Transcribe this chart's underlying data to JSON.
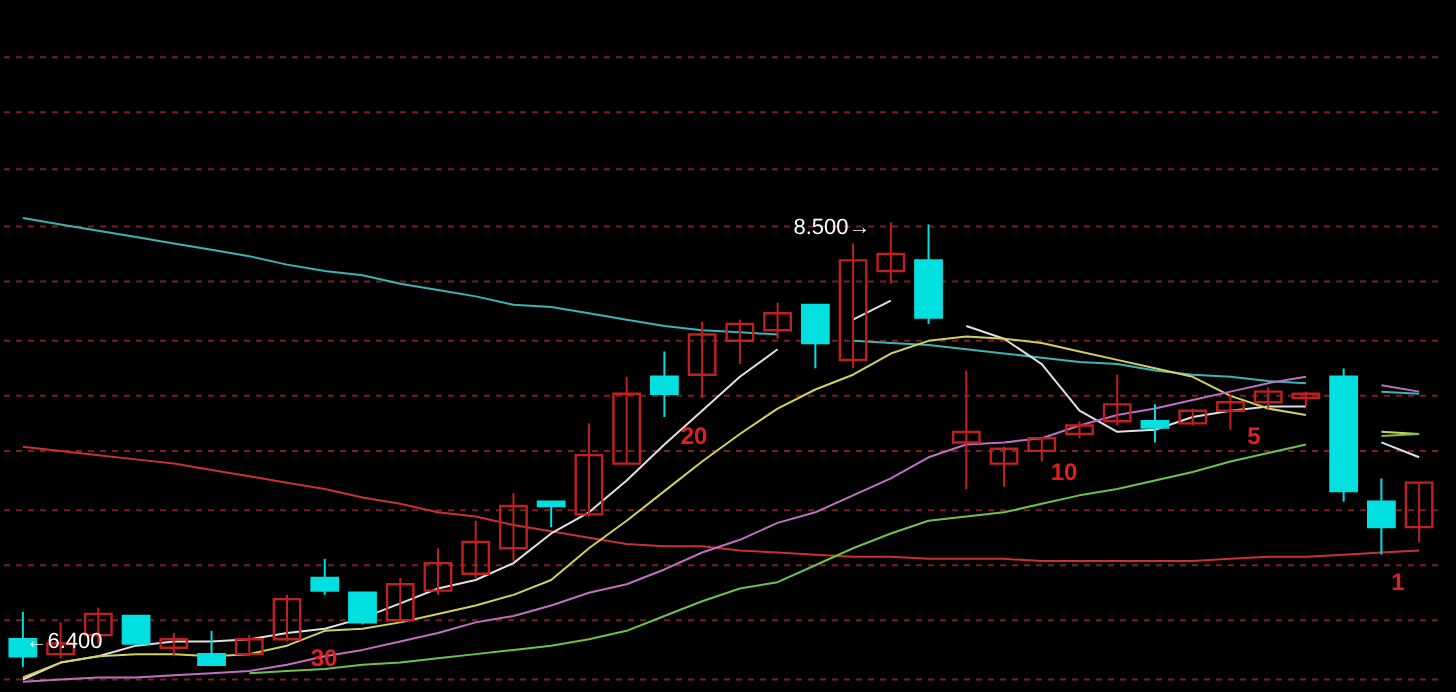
{
  "chart_data": {
    "type": "candlestick",
    "categories": [
      null,
      null,
      null,
      null,
      null,
      null,
      null,
      null,
      null,
      null,
      null,
      null,
      null,
      null,
      null,
      null,
      null,
      null,
      null,
      null,
      null,
      null,
      null,
      null,
      null,
      null,
      null,
      null,
      null,
      null,
      null,
      null,
      null,
      null,
      null,
      null,
      null,
      null
    ],
    "ohlc": [
      [
        6.53,
        6.66,
        6.4,
        6.45
      ],
      [
        6.46,
        6.61,
        6.44,
        6.51
      ],
      [
        6.55,
        6.68,
        6.51,
        6.65
      ],
      [
        6.64,
        6.64,
        6.51,
        6.51
      ],
      [
        6.49,
        6.56,
        6.45,
        6.53
      ],
      [
        6.46,
        6.57,
        6.41,
        6.41
      ],
      [
        6.46,
        6.55,
        6.45,
        6.53
      ],
      [
        6.53,
        6.74,
        6.52,
        6.72
      ],
      [
        6.82,
        6.91,
        6.74,
        6.76
      ],
      [
        6.75,
        6.75,
        6.6,
        6.61
      ],
      [
        6.62,
        6.82,
        6.61,
        6.79
      ],
      [
        6.76,
        6.96,
        6.74,
        6.89
      ],
      [
        6.84,
        7.09,
        6.82,
        6.99
      ],
      [
        6.96,
        7.22,
        6.9,
        7.16
      ],
      [
        7.18,
        7.18,
        7.06,
        7.16
      ],
      [
        7.12,
        7.55,
        7.11,
        7.4
      ],
      [
        7.36,
        7.77,
        7.36,
        7.69
      ],
      [
        7.77,
        7.89,
        7.58,
        7.69
      ],
      [
        7.78,
        8.03,
        7.67,
        7.97
      ],
      [
        7.94,
        8.04,
        7.83,
        8.02
      ],
      [
        7.99,
        8.12,
        7.95,
        8.07
      ],
      [
        8.11,
        8.11,
        7.81,
        7.93
      ],
      [
        7.85,
        8.4,
        7.81,
        8.32
      ],
      [
        8.27,
        8.5,
        8.21,
        8.35
      ],
      [
        8.32,
        8.49,
        8.02,
        8.05
      ],
      [
        7.46,
        7.8,
        7.24,
        7.51
      ],
      [
        7.36,
        7.44,
        7.25,
        7.43
      ],
      [
        7.42,
        7.48,
        7.37,
        7.48
      ],
      [
        7.5,
        7.56,
        7.48,
        7.54
      ],
      [
        7.56,
        7.78,
        7.54,
        7.64
      ],
      [
        7.56,
        7.64,
        7.46,
        7.53
      ],
      [
        7.55,
        7.62,
        7.54,
        7.61
      ],
      [
        7.61,
        7.69,
        7.52,
        7.65
      ],
      [
        7.65,
        7.72,
        7.62,
        7.7
      ],
      [
        7.67,
        7.7,
        7.63,
        7.69
      ],
      [
        7.77,
        7.81,
        7.18,
        7.23
      ],
      [
        7.18,
        7.29,
        6.93,
        7.06
      ],
      [
        7.06,
        7.27,
        6.99,
        7.27
      ]
    ],
    "colors": [
      "#00e0e0",
      "#c02020",
      "#c02020",
      "#00e0e0",
      "#c02020",
      "#00e0e0",
      "#c02020",
      "#c02020",
      "#00e0e0",
      "#00e0e0",
      "#c02020",
      "#c02020",
      "#c02020",
      "#c02020",
      "#00e0e0",
      "#c02020",
      "#c02020",
      "#00e0e0",
      "#c02020",
      "#c02020",
      "#c02020",
      "#00e0e0",
      "#c02020",
      "#c02020",
      "#00e0e0",
      "#c02020",
      "#c02020",
      "#c02020",
      "#c02020",
      "#c02020",
      "#00e0e0",
      "#c02020",
      "#c02020",
      "#c02020",
      "#c02020",
      "#00e0e0",
      "#00e0e0",
      "#c02020"
    ],
    "series": [
      {
        "type": "line",
        "color": "#3cb4b4",
        "values": [
          8.52,
          8.49,
          8.46,
          8.43,
          8.4,
          8.37,
          8.34,
          8.3,
          8.27,
          8.25,
          8.21,
          8.18,
          8.15,
          8.11,
          8.1,
          8.07,
          8.04,
          8.01,
          7.99,
          7.98,
          7.97,
          null,
          7.94,
          7.93,
          7.92,
          7.9,
          7.88,
          7.86,
          7.84,
          7.83,
          7.8,
          7.78,
          7.77,
          7.75,
          7.74,
          null,
          7.7,
          7.69
        ]
      },
      {
        "type": "line",
        "color": "#c83232",
        "values": [
          7.44,
          7.42,
          7.4,
          7.38,
          7.36,
          7.33,
          7.3,
          7.27,
          7.24,
          7.2,
          7.17,
          7.13,
          7.11,
          7.07,
          7.04,
          7.01,
          6.98,
          6.97,
          6.97,
          6.95,
          6.94,
          6.93,
          6.92,
          6.92,
          6.91,
          6.91,
          6.91,
          6.9,
          6.9,
          6.9,
          6.9,
          6.9,
          6.91,
          6.92,
          6.92,
          6.93,
          6.94,
          6.95
        ]
      },
      {
        "type": "line",
        "color": "#e0e0e0",
        "values": [
          6.34,
          6.42,
          6.45,
          6.5,
          6.52,
          6.52,
          6.53,
          6.56,
          6.58,
          6.63,
          6.7,
          6.77,
          6.81,
          6.89,
          7.03,
          7.13,
          7.28,
          7.45,
          7.61,
          7.77,
          7.9,
          null,
          8.04,
          8.13,
          null,
          8.01,
          7.95,
          7.83,
          7.61,
          7.51,
          7.52,
          7.58,
          7.61,
          7.63,
          7.63,
          null,
          7.46,
          7.39
        ]
      },
      {
        "type": "line",
        "color": "#d0d060",
        "values": [
          6.35,
          6.42,
          6.45,
          6.46,
          6.46,
          6.45,
          6.46,
          6.5,
          6.57,
          6.58,
          6.61,
          6.65,
          6.69,
          6.74,
          6.81,
          6.96,
          7.09,
          7.23,
          7.37,
          7.5,
          7.62,
          7.71,
          7.78,
          7.88,
          7.94,
          7.96,
          7.95,
          7.93,
          7.89,
          7.85,
          7.81,
          7.77,
          7.68,
          7.62,
          7.59,
          null,
          7.51,
          7.5
        ]
      },
      {
        "type": "line",
        "color": "#c070c0",
        "values": [
          6.33,
          6.34,
          6.35,
          6.35,
          6.36,
          6.37,
          6.38,
          6.41,
          6.45,
          6.48,
          6.52,
          6.56,
          6.61,
          6.64,
          6.69,
          6.75,
          6.79,
          6.86,
          6.94,
          7.0,
          7.08,
          7.13,
          7.21,
          7.29,
          7.39,
          7.45,
          7.46,
          7.48,
          7.54,
          7.59,
          7.62,
          7.66,
          7.7,
          7.74,
          7.77,
          null,
          7.73,
          7.7
        ]
      },
      {
        "type": "line",
        "color": "#70c050",
        "values": [
          null,
          null,
          null,
          null,
          null,
          null,
          6.37,
          6.38,
          6.39,
          6.41,
          6.42,
          6.44,
          6.46,
          6.48,
          6.5,
          6.53,
          6.57,
          6.64,
          6.71,
          6.77,
          6.8,
          6.88,
          6.96,
          7.03,
          7.09,
          7.11,
          7.13,
          7.17,
          7.21,
          7.24,
          7.28,
          7.32,
          7.37,
          7.41,
          7.45,
          null,
          7.49,
          7.5
        ]
      }
    ],
    "ylim": [
      6.3,
      9.55
    ],
    "yticks": [
      {
        "value": 6.34,
        "label": null
      },
      {
        "value": 6.62,
        "label": null
      },
      {
        "value": 6.88,
        "label": null
      },
      {
        "value": 7.14,
        "label": null
      },
      {
        "value": 7.42,
        "label": null
      },
      {
        "value": 7.68,
        "label": null
      },
      {
        "value": 7.94,
        "label": null
      },
      {
        "value": 8.22,
        "label": null
      },
      {
        "value": 8.48,
        "label": null
      },
      {
        "value": 8.75,
        "label": null
      },
      {
        "value": 9.02,
        "label": null
      },
      {
        "value": 9.28,
        "label": null
      }
    ],
    "grid": "y",
    "annotations": [
      "8.500→",
      "←6.400",
      "30",
      "20",
      "10",
      "5",
      "1"
    ]
  }
}
